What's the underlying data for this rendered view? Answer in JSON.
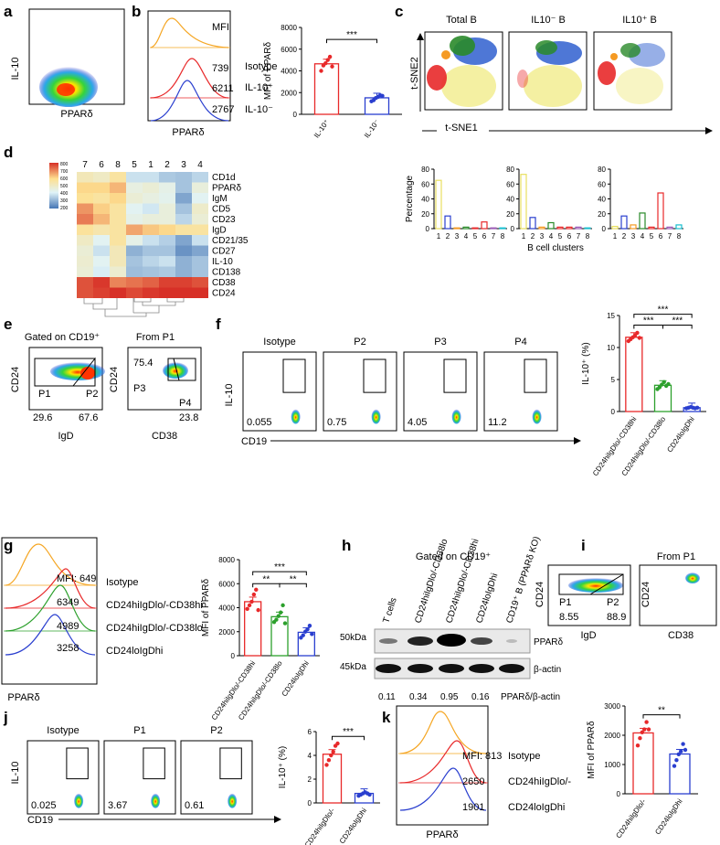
{
  "panel_letters": [
    "a",
    "b",
    "c",
    "d",
    "e",
    "f",
    "g",
    "h",
    "i",
    "j",
    "k"
  ],
  "labels": {
    "il10": "IL-10",
    "ppard": "PPARδ",
    "cd19": "CD19",
    "cd24": "CD24",
    "cd38": "CD38",
    "igd": "IgD",
    "mfi": "MFI",
    "isotype": "Isotype",
    "il10pos": "IL-10⁺",
    "il10neg": "IL-10⁻",
    "mfi_ppard": "MFI of PPARδ",
    "il10pct": "IL-10⁺ (%)",
    "gated_cd19": "Gated on CD19⁺",
    "from_p1": "From P1",
    "tsne1": "t-SNE1",
    "tsne2": "t-SNE2",
    "percentage": "Percentage",
    "bclusters": "B cell clusters",
    "sig3": "***",
    "sig2": "**"
  },
  "panel_b": {
    "mfi_values": [
      "739",
      "6211",
      "2767"
    ],
    "rows": [
      "Isotype",
      "IL-10⁺",
      "IL-10⁻"
    ]
  },
  "panel_c": {
    "titles": [
      "Total B",
      "IL10⁻ B",
      "IL10⁺ B"
    ]
  },
  "panel_d": {
    "columns": [
      "7",
      "6",
      "8",
      "5",
      "1",
      "2",
      "3",
      "4"
    ],
    "rows": [
      "CD1d",
      "PPARδ",
      "IgM",
      "CD5",
      "CD23",
      "IgD",
      "CD21/35",
      "CD27",
      "IL-10",
      "CD138",
      "CD38",
      "CD24"
    ],
    "scale": [
      "800",
      "700",
      "600",
      "500",
      "400",
      "300",
      "200"
    ]
  },
  "panel_e": {
    "gates": {
      "p1": "P1",
      "p2": "P2",
      "p3": "P3",
      "p4": "P4"
    },
    "values": {
      "p1": "29.6",
      "p2": "67.6",
      "p3": "75.4",
      "p4": "23.8"
    }
  },
  "panel_f": {
    "titles": [
      "Isotype",
      "P2",
      "P3",
      "P4"
    ],
    "values": [
      "0.055",
      "0.75",
      "4.05",
      "11.2"
    ],
    "xcats": [
      "CD24hiIgDlo/-CD38hi",
      "CD24hiIgDlo/-CD38lo",
      "CD24loIgDhi"
    ]
  },
  "panel_g": {
    "mfi_values": [
      "MFI: 649",
      "6349",
      "4989",
      "3258"
    ],
    "rows": [
      "Isotype",
      "CD24hiIgDlo/-CD38hi",
      "CD24hiIgDlo/-CD38lo",
      "CD24loIgDhi"
    ]
  },
  "panel_h": {
    "lanes": [
      "T cells",
      "CD24hiIgDlo/-CD38lo",
      "CD24hiIgDlo/-CD38hi",
      "CD24loIgDhi",
      "CD19⁺ B (PPARδ KO)"
    ],
    "mw": [
      "50kDa",
      "45kDa"
    ],
    "proteins": [
      "PPARδ",
      "β-actin"
    ],
    "ratios": [
      "0.11",
      "0.34",
      "0.95",
      "0.16"
    ],
    "ratio_label": "PPARδ/β-actin"
  },
  "panel_i": {
    "gates": {
      "p1": "P1",
      "p2": "P2"
    },
    "values": {
      "p1": "8.55",
      "p2": "88.9"
    }
  },
  "panel_j": {
    "titles": [
      "Isotype",
      "P1",
      "P2"
    ],
    "values": [
      "0.025",
      "3.67",
      "0.61"
    ]
  },
  "panel_k": {
    "mfi_values": [
      "MFI: 813",
      "2650",
      "1901"
    ],
    "rows": [
      "Isotype",
      "CD24hiIgDlo/-",
      "CD24loIgDhi"
    ]
  },
  "chart_data": [
    {
      "id": "b",
      "type": "bar",
      "title": "",
      "ylabel": "MFI of PPARδ",
      "ylim": [
        0,
        8000
      ],
      "yticks": [
        0,
        2000,
        4000,
        6000,
        8000
      ],
      "categories": [
        "IL-10⁺",
        "IL-10⁻"
      ],
      "values": [
        4650,
        1520
      ],
      "colors": [
        "#e8292a",
        "#2a3fcf"
      ],
      "points": [
        [
          4000,
          4500,
          4700,
          5000,
          5300,
          4400
        ],
        [
          1200,
          1300,
          1500,
          1600,
          1750,
          1700
        ]
      ],
      "brackets": [
        {
          "from": 0,
          "to": 1,
          "y": 6900,
          "label": "***"
        }
      ]
    },
    {
      "id": "c1",
      "type": "bar",
      "ylabel": "Percentage",
      "ylim": [
        0,
        80
      ],
      "yticks": [
        0,
        20,
        40,
        60,
        80
      ],
      "categories": [
        "1",
        "2",
        "3",
        "4",
        "5",
        "6",
        "7",
        "8"
      ],
      "values": [
        65,
        17,
        1,
        2,
        1,
        9,
        1,
        1
      ]
    },
    {
      "id": "c2",
      "type": "bar",
      "ylim": [
        0,
        80
      ],
      "yticks": [
        0,
        20,
        40,
        60,
        80
      ],
      "categories": [
        "1",
        "2",
        "3",
        "4",
        "5",
        "6",
        "7",
        "8"
      ],
      "values": [
        73,
        15,
        2,
        8,
        2,
        2,
        2,
        1
      ],
      "xlabel": "B cell clusters"
    },
    {
      "id": "c3",
      "type": "bar",
      "ylim": [
        0,
        80
      ],
      "yticks": [
        0,
        20,
        40,
        60,
        80
      ],
      "categories": [
        "1",
        "2",
        "3",
        "4",
        "5",
        "6",
        "7",
        "8"
      ],
      "values": [
        3,
        17,
        5,
        21,
        2,
        48,
        2,
        5
      ]
    },
    {
      "id": "f",
      "type": "bar",
      "ylabel": "IL-10⁺ (%)",
      "ylim": [
        0,
        15
      ],
      "yticks": [
        0,
        5,
        10,
        15
      ],
      "categories": [
        "CD24hiIgDlo/-CD38hi",
        "CD24hiIgDlo/-CD38lo",
        "CD24loIgDhi"
      ],
      "values": [
        11.6,
        4.1,
        0.6
      ],
      "colors": [
        "#e8292a",
        "#2ca02c",
        "#2a3fcf"
      ],
      "points": [
        [
          11.0,
          11.3,
          11.6,
          11.9,
          12.3,
          11.5
        ],
        [
          3.5,
          3.8,
          4.2,
          4.6,
          4.0,
          4.3
        ],
        [
          0.5,
          0.6,
          0.7,
          0.6,
          0.5,
          0.6
        ]
      ],
      "brackets": [
        {
          "from": 0,
          "to": 1,
          "y": 13.5,
          "label": "***"
        },
        {
          "from": 1,
          "to": 2,
          "y": 13.5,
          "label": "***"
        },
        {
          "from": 0,
          "to": 2,
          "y": 15.2,
          "label": "***"
        }
      ]
    },
    {
      "id": "g",
      "type": "bar",
      "ylabel": "MFI of PPARδ",
      "ylim": [
        0,
        8000
      ],
      "yticks": [
        0,
        2000,
        4000,
        6000,
        8000
      ],
      "categories": [
        "CD24hiIgDlo/-CD38hi",
        "CD24hiIgDlo/-CD38lo",
        "CD24loIgDhi"
      ],
      "values": [
        4500,
        3250,
        1950
      ],
      "colors": [
        "#e8292a",
        "#2ca02c",
        "#2a3fcf"
      ],
      "points": [
        [
          3900,
          4200,
          4500,
          5100,
          5500,
          3800
        ],
        [
          2800,
          3000,
          3300,
          3600,
          4200,
          2700
        ],
        [
          1500,
          1700,
          2000,
          2200,
          2500,
          1800
        ]
      ],
      "brackets": [
        {
          "from": 0,
          "to": 1,
          "y": 6000,
          "label": "**"
        },
        {
          "from": 1,
          "to": 2,
          "y": 6000,
          "label": "**"
        },
        {
          "from": 0,
          "to": 2,
          "y": 7000,
          "label": "***"
        }
      ]
    },
    {
      "id": "j",
      "type": "bar",
      "ylabel": "IL-10⁺ (%)",
      "ylim": [
        0,
        6
      ],
      "yticks": [
        0,
        2,
        4,
        6
      ],
      "categories": [
        "CD24hiIgDlo/-",
        "CD24loIgDhi"
      ],
      "values": [
        4.1,
        0.8
      ],
      "colors": [
        "#e8292a",
        "#2a3fcf"
      ],
      "points": [
        [
          3.2,
          3.6,
          4.0,
          4.3,
          4.8,
          5.0
        ],
        [
          0.6,
          0.7,
          0.8,
          0.9,
          0.8,
          0.7
        ]
      ],
      "brackets": [
        {
          "from": 0,
          "to": 1,
          "y": 5.6,
          "label": "***"
        }
      ]
    },
    {
      "id": "k",
      "type": "bar",
      "ylabel": "MFI of PPARδ",
      "ylim": [
        0,
        3000
      ],
      "yticks": [
        0,
        1000,
        2000,
        3000
      ],
      "categories": [
        "CD24hiIgDlo/-",
        "CD24loIgDhi"
      ],
      "values": [
        2080,
        1360
      ],
      "colors": [
        "#e8292a",
        "#2a3fcf"
      ],
      "points": [
        [
          1650,
          1900,
          2100,
          2200,
          2450,
          2200
        ],
        [
          950,
          1150,
          1350,
          1450,
          1700,
          1500
        ]
      ],
      "brackets": [
        {
          "from": 0,
          "to": 1,
          "y": 2700,
          "label": "**"
        }
      ]
    }
  ]
}
